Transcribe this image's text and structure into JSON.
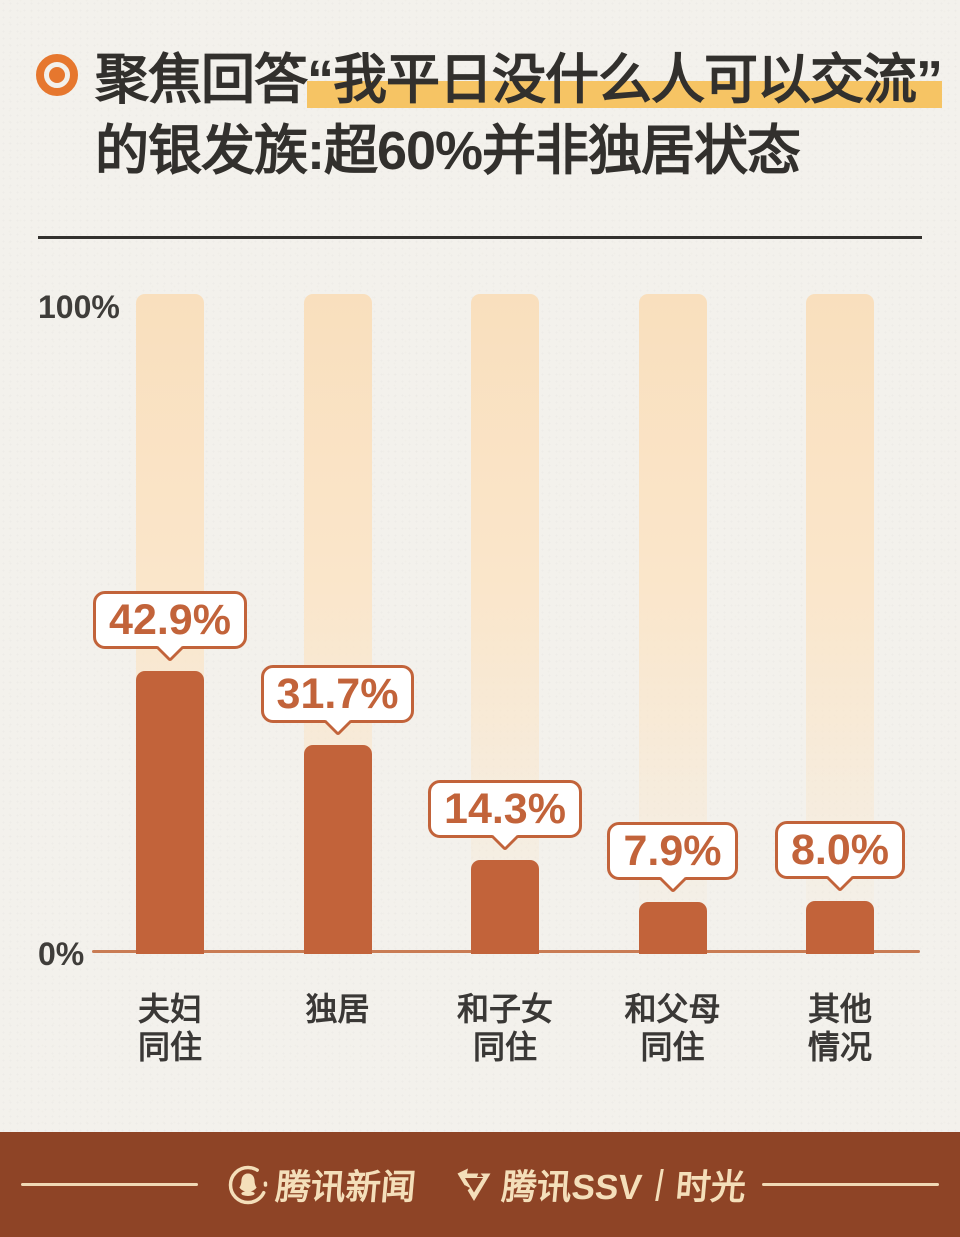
{
  "page": {
    "background": "#f3f1ec"
  },
  "header": {
    "bullet_icon": "orange-bullseye",
    "title_line1_prefix": "聚焦回答",
    "title_line1_highlight": "“我平日没什么人可以交流”",
    "title_line2": "的银发族:超60%并非独居状态",
    "highlight_color": "#f6c464",
    "title_color": "#32302d"
  },
  "chart_data": {
    "type": "bar",
    "title": "聚焦回答“我平日没什么人可以交流”的银发族:超60%并非独居状态",
    "categories": [
      "夫妇\n同住",
      "独居",
      "和子女\n同住",
      "和父母\n同住",
      "其他\n情况"
    ],
    "values": [
      42.9,
      31.7,
      14.3,
      7.9,
      8.0
    ],
    "value_labels": [
      "42.9%",
      "31.7%",
      "14.3%",
      "7.9%",
      "8.0%"
    ],
    "ylim": [
      0,
      100
    ],
    "axis_top_label": "100%",
    "axis_bottom_label": "0%",
    "grid": false,
    "legend": false,
    "bar_color": "#c2633a",
    "track_color": "#f9dfbd",
    "axis_line_color": "#c97c54"
  },
  "footer": {
    "news_logo_icon": "tencent-news-penguin",
    "news_label": "腾讯新闻",
    "ssv_logo_icon": "tencent-ssv-triangle",
    "ssv_label": "腾讯SSV",
    "separator": "|",
    "brand_label": "时光",
    "bg_color": "#8e4426",
    "text_color": "#f4dfba"
  }
}
